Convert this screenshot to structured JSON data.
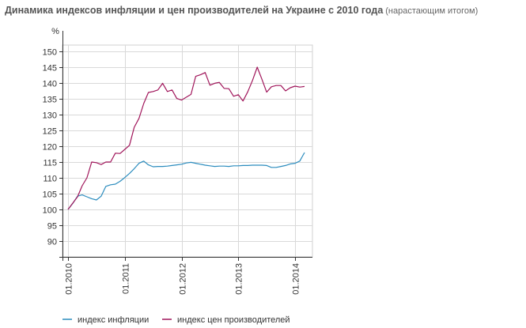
{
  "title": {
    "main": "Динамика индексов инфляции и цен производителей на Украине с 2010 года",
    "sub": "(нарастающим итогом)"
  },
  "chart_data": {
    "type": "line",
    "title": "Динамика индексов инфляции и цен производителей на Украине с 2010 года",
    "subtitle": "(нарастающим итогом)",
    "ylabel": "%",
    "xlabel": "",
    "ylim": [
      85,
      152
    ],
    "xlim": [
      0,
      52
    ],
    "y_ticks": [
      90,
      95,
      100,
      105,
      110,
      115,
      120,
      125,
      130,
      135,
      140,
      145,
      150
    ],
    "x_ticks": [
      {
        "x": 0,
        "label": "01.2010"
      },
      {
        "x": 12,
        "label": "01.2011"
      },
      {
        "x": 24,
        "label": "01.2012"
      },
      {
        "x": 36,
        "label": "01.2013"
      },
      {
        "x": 48,
        "label": "01.2014"
      }
    ],
    "grid": true,
    "legend_position": "bottom",
    "series": [
      {
        "name": "индекс инфляции",
        "color": "#2b8cbe",
        "x": [
          0,
          1,
          2,
          3,
          4,
          5,
          6,
          7,
          8,
          9,
          10,
          11,
          12,
          13,
          14,
          15,
          16,
          17,
          18,
          19,
          20,
          21,
          22,
          23,
          24,
          25,
          26,
          27,
          28,
          29,
          30,
          31,
          32,
          33,
          34,
          35,
          36,
          37,
          38,
          39,
          40,
          41,
          42,
          43,
          44,
          45,
          46,
          47,
          48,
          49,
          50
        ],
        "values": [
          100.0,
          101.9,
          104.2,
          104.6,
          104.0,
          103.4,
          103.0,
          104.2,
          107.3,
          107.8,
          108.0,
          108.9,
          110.1,
          111.4,
          112.9,
          114.6,
          115.3,
          114.1,
          113.5,
          113.6,
          113.6,
          113.7,
          113.9,
          114.1,
          114.3,
          114.7,
          114.9,
          114.6,
          114.3,
          114.0,
          113.8,
          113.6,
          113.7,
          113.7,
          113.6,
          113.8,
          113.8,
          113.9,
          113.9,
          114.0,
          114.0,
          114.0,
          113.9,
          113.3,
          113.3,
          113.6,
          113.9,
          114.4,
          114.6,
          115.3,
          118.0
        ]
      },
      {
        "name": "индекс цен производителей",
        "color": "#a0155a",
        "x": [
          0,
          1,
          2,
          3,
          4,
          5,
          6,
          7,
          8,
          9,
          10,
          11,
          12,
          13,
          14,
          15,
          16,
          17,
          18,
          19,
          20,
          21,
          22,
          23,
          24,
          25,
          26,
          27,
          28,
          29,
          30,
          31,
          32,
          33,
          34,
          35,
          36,
          37,
          38,
          39,
          40,
          41,
          42,
          43,
          44,
          45,
          46,
          47,
          48,
          49,
          50
        ],
        "values": [
          100.0,
          102.0,
          104.0,
          107.5,
          110.0,
          115.0,
          114.8,
          114.2,
          115.0,
          115.0,
          117.8,
          117.7,
          119.0,
          120.3,
          126.0,
          128.8,
          133.5,
          137.0,
          137.3,
          137.8,
          139.9,
          137.3,
          137.8,
          135.1,
          134.6,
          135.5,
          136.4,
          142.1,
          142.6,
          143.3,
          139.3,
          139.9,
          140.2,
          138.3,
          138.2,
          135.8,
          136.3,
          134.3,
          137.2,
          140.8,
          145.0,
          141.2,
          137.1,
          138.8,
          139.2,
          139.2,
          137.5,
          138.5,
          139.0,
          138.7,
          138.9
        ]
      }
    ]
  }
}
